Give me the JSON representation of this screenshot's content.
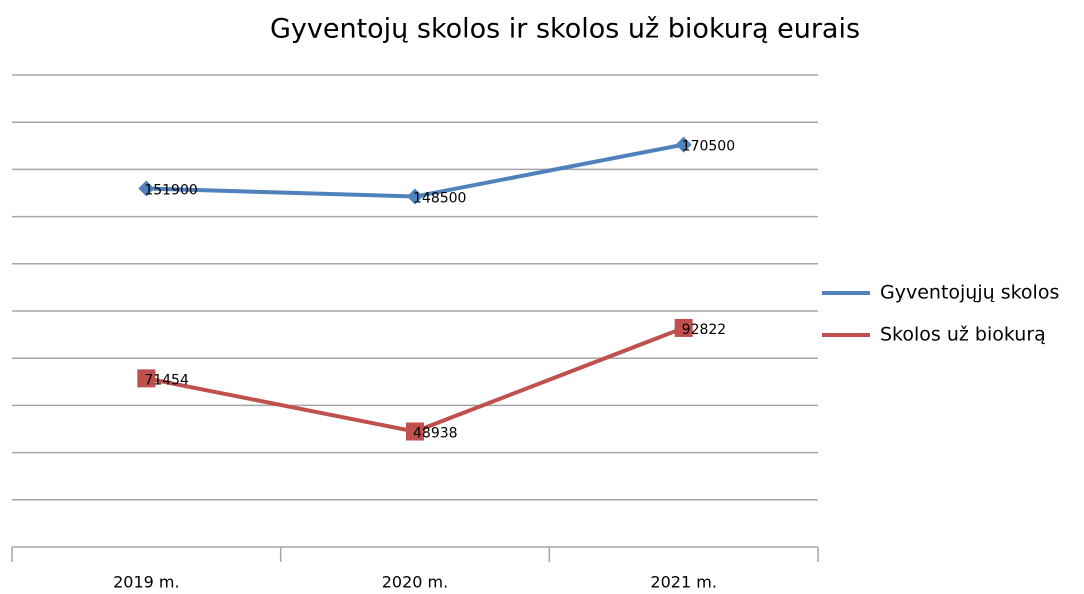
{
  "chart_data": {
    "type": "line",
    "title": "Gyventojų skolos ir skolos už biokurą  eurais",
    "categories": [
      "2019 m.",
      "2020 m.",
      "2021 m."
    ],
    "series": [
      {
        "name": "Gyventojųjų skolos",
        "color": "#4f81bd",
        "marker": "diamond",
        "values": [
          151900,
          148500,
          170500
        ]
      },
      {
        "name": "Skolos už biokurą",
        "color": "#c0504d",
        "marker": "square",
        "values": [
          71454,
          48938,
          92822
        ]
      }
    ],
    "ylim": [
      0,
      200000
    ],
    "yticks": [
      0,
      20000,
      40000,
      60000,
      80000,
      100000,
      120000,
      140000,
      160000,
      180000,
      200000
    ],
    "grid": true,
    "legend": "right"
  }
}
